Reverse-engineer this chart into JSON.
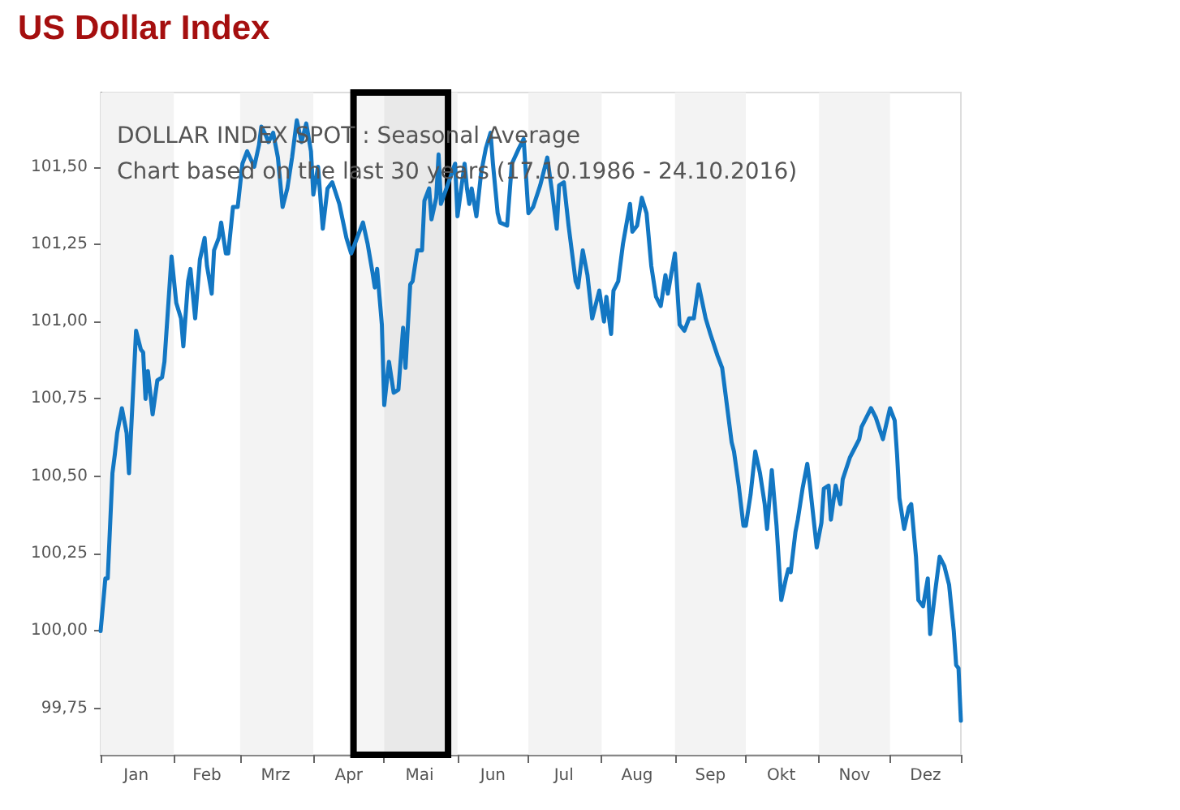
{
  "chart_data": {
    "type": "line",
    "title": "US Dollar Index",
    "annotations": [
      "DOLLAR INDEX SPOT : Seasonal Average",
      "Chart based on the last 30 years (17.10.1986 - 24.10.2016)"
    ],
    "xlim": [
      "--01-01",
      "--12-31"
    ],
    "xticks": [
      {
        "value": "--01-01",
        "label": null
      },
      {
        "value": "--01-16",
        "label": "Jan"
      },
      {
        "value": "--02-01",
        "label": null
      },
      {
        "value": "--02-15",
        "label": "Feb"
      },
      {
        "value": "--03-01",
        "label": null
      },
      {
        "value": "--03-16",
        "label": "Mrz"
      },
      {
        "value": "--04-01",
        "label": null
      },
      {
        "value": "--04-16",
        "label": "Apr"
      },
      {
        "value": "--05-01",
        "label": null
      },
      {
        "value": "--05-16",
        "label": "Mai"
      },
      {
        "value": "--06-01",
        "label": null
      },
      {
        "value": "--06-16",
        "label": "Jun"
      },
      {
        "value": "--07-01",
        "label": null
      },
      {
        "value": "--07-16",
        "label": "Jul"
      },
      {
        "value": "--08-01",
        "label": null
      },
      {
        "value": "--08-16",
        "label": "Aug"
      },
      {
        "value": "--09-01",
        "label": null
      },
      {
        "value": "--09-16",
        "label": "Sep"
      },
      {
        "value": "--10-01",
        "label": null
      },
      {
        "value": "--10-16",
        "label": "Okt"
      },
      {
        "value": "--11-01",
        "label": null
      },
      {
        "value": "--11-16",
        "label": "Nov"
      },
      {
        "value": "--12-01",
        "label": null
      },
      {
        "value": "--12-16",
        "label": "Dez"
      },
      {
        "value": "--12-31",
        "label": null
      }
    ],
    "ylim": [
      99.6,
      101.74
    ],
    "yticks": [
      {
        "value": 99.75,
        "label": "99,75"
      },
      {
        "value": 100,
        "label": "100,00"
      },
      {
        "value": 100.25,
        "label": "100,25"
      },
      {
        "value": 100.5,
        "label": "100,50"
      },
      {
        "value": 100.75,
        "label": "100,75"
      },
      {
        "value": 101,
        "label": "101,00"
      },
      {
        "value": 101.25,
        "label": "101,25"
      },
      {
        "value": 101.5,
        "label": "101,50"
      }
    ],
    "grid": false,
    "marker": "none",
    "line_style": "solid",
    "bands": [
      {
        "axis": "x",
        "from": "--01-01",
        "to": "--02-01",
        "color": "#f3f3f3"
      },
      {
        "axis": "x",
        "from": "--03-01",
        "to": "--04-01",
        "color": "#f3f3f3"
      },
      {
        "axis": "x",
        "from": "--05-01",
        "to": "--06-01",
        "color": "#f3f3f3"
      },
      {
        "axis": "x",
        "from": "--07-01",
        "to": "--08-01",
        "color": "#f3f3f3"
      },
      {
        "axis": "x",
        "from": "--09-01",
        "to": "--10-01",
        "color": "#f3f3f3"
      },
      {
        "axis": "x",
        "from": "--11-01",
        "to": "--12-01",
        "color": "#f3f3f3"
      },
      {
        "axis": "x",
        "from": "--04-18",
        "to": "--05-28",
        "color": "#000000"
      }
    ],
    "series": [
      {
        "color": "#1377c3",
        "x": [
          "--01-01",
          "--01-03",
          "--01-04",
          "--01-06",
          "--01-07",
          "--01-08",
          "--01-10",
          "--01-12",
          "--01-13",
          "--01-16",
          "--01-18",
          "--01-19",
          "--01-20",
          "--01-21",
          "--01-23",
          "--01-25",
          "--01-27",
          "--01-28",
          "--01-31",
          "--02-02",
          "--02-04",
          "--02-05",
          "--02-07",
          "--02-08",
          "--02-10",
          "--02-12",
          "--02-14",
          "--02-15",
          "--02-17",
          "--02-18",
          "--02-20",
          "--02-21",
          "--02-23",
          "--02-24",
          "--02-26",
          "--02-28",
          "--03-02",
          "--03-04",
          "--03-07",
          "--03-09",
          "--03-10",
          "--03-12",
          "--03-13",
          "--03-15",
          "--03-17",
          "--03-19",
          "--03-21",
          "--03-23",
          "--03-25",
          "--03-27",
          "--03-29",
          "--03-31",
          "--04-01",
          "--04-03",
          "--04-05",
          "--04-07",
          "--04-09",
          "--04-12",
          "--04-15",
          "--04-17",
          "--04-22",
          "--04-24",
          "--04-26",
          "--04-27",
          "--04-28",
          "--04-30",
          "--05-01",
          "--05-03",
          "--05-05",
          "--05-07",
          "--05-09",
          "--05-10",
          "--05-12",
          "--05-13",
          "--05-15",
          "--05-17",
          "--05-18",
          "--05-20",
          "--05-21",
          "--05-23",
          "--05-24",
          "--05-25",
          "--05-31",
          "--06-01",
          "--06-04",
          "--06-05",
          "--06-06",
          "--06-07",
          "--06-09",
          "--06-11",
          "--06-13",
          "--06-15",
          "--06-16",
          "--06-18",
          "--06-19",
          "--06-22",
          "--06-24",
          "--06-27",
          "--06-29",
          "--07-01",
          "--07-03",
          "--07-06",
          "--07-09",
          "--07-11",
          "--07-13",
          "--07-14",
          "--07-16",
          "--07-18",
          "--07-21",
          "--07-22",
          "--07-24",
          "--07-26",
          "--07-28",
          "--07-31",
          "--08-02",
          "--08-03",
          "--08-05",
          "--08-06",
          "--08-08",
          "--08-10",
          "--08-13",
          "--08-14",
          "--08-16",
          "--08-18",
          "--08-20",
          "--08-22",
          "--08-24",
          "--08-26",
          "--08-28",
          "--08-29",
          "--09-01",
          "--09-03",
          "--09-05",
          "--09-07",
          "--09-09",
          "--09-11",
          "--09-14",
          "--09-16",
          "--09-19",
          "--09-21",
          "--09-23",
          "--09-25",
          "--09-26",
          "--09-28",
          "--09-30",
          "--10-01",
          "--10-03",
          "--10-05",
          "--10-07",
          "--10-09",
          "--10-10",
          "--10-12",
          "--10-14",
          "--10-16",
          "--10-18",
          "--10-19",
          "--10-20",
          "--10-22",
          "--10-23",
          "--10-25",
          "--10-27",
          "--10-28",
          "--10-31",
          "--11-02",
          "--11-03",
          "--11-05",
          "--11-06",
          "--11-08",
          "--11-10",
          "--11-11",
          "--11-14",
          "--11-16",
          "--11-18",
          "--11-19",
          "--11-23",
          "--11-25",
          "--11-28",
          "--12-01",
          "--12-03",
          "--12-04",
          "--12-05",
          "--12-07",
          "--12-09",
          "--12-10",
          "--12-12",
          "--12-13",
          "--12-15",
          "--12-17",
          "--12-18",
          "--12-20",
          "--12-22",
          "--12-24",
          "--12-26",
          "--12-28",
          "--12-29",
          "--12-30",
          "--12-31"
        ],
        "values": [
          100.0,
          100.17,
          100.17,
          100.51,
          100.57,
          100.64,
          100.72,
          100.64,
          100.51,
          100.97,
          100.91,
          100.9,
          100.75,
          100.84,
          100.7,
          100.81,
          100.82,
          100.87,
          101.21,
          101.06,
          101.01,
          100.92,
          101.13,
          101.17,
          101.01,
          101.2,
          101.27,
          101.18,
          101.09,
          101.23,
          101.27,
          101.32,
          101.22,
          101.22,
          101.37,
          101.37,
          101.51,
          101.55,
          101.5,
          101.57,
          101.63,
          101.6,
          101.58,
          101.61,
          101.53,
          101.37,
          101.43,
          101.53,
          101.65,
          101.58,
          101.64,
          101.55,
          101.41,
          101.5,
          101.3,
          101.43,
          101.45,
          101.38,
          101.27,
          101.22,
          101.32,
          101.25,
          101.16,
          101.11,
          101.17,
          100.99,
          100.73,
          100.87,
          100.77,
          100.78,
          100.98,
          100.85,
          101.12,
          101.13,
          101.23,
          101.23,
          101.39,
          101.43,
          101.33,
          101.4,
          101.54,
          101.38,
          101.51,
          101.34,
          101.51,
          101.43,
          101.38,
          101.43,
          101.34,
          101.48,
          101.56,
          101.61,
          101.51,
          101.35,
          101.32,
          101.31,
          101.51,
          101.56,
          101.59,
          101.35,
          101.37,
          101.44,
          101.53,
          101.42,
          101.3,
          101.44,
          101.45,
          101.31,
          101.13,
          101.11,
          101.23,
          101.15,
          101.01,
          101.1,
          101.0,
          101.08,
          100.96,
          101.1,
          101.13,
          101.25,
          101.38,
          101.29,
          101.31,
          101.4,
          101.35,
          101.18,
          101.08,
          101.05,
          101.15,
          101.09,
          101.22,
          100.99,
          100.97,
          101.01,
          101.01,
          101.12,
          101.01,
          100.96,
          100.89,
          100.85,
          100.73,
          100.61,
          100.58,
          100.47,
          100.34,
          100.34,
          100.44,
          100.58,
          100.51,
          100.41,
          100.33,
          100.52,
          100.34,
          100.1,
          100.17,
          100.2,
          100.19,
          100.32,
          100.36,
          100.46,
          100.54,
          100.48,
          100.27,
          100.35,
          100.46,
          100.47,
          100.36,
          100.47,
          100.41,
          100.49,
          100.56,
          100.59,
          100.62,
          100.66,
          100.72,
          100.69,
          100.62,
          100.72,
          100.68,
          100.57,
          100.43,
          100.33,
          100.4,
          100.41,
          100.24,
          100.1,
          100.08,
          100.17,
          99.99,
          100.12,
          100.24,
          100.21,
          100.15,
          100.0,
          99.89,
          99.88,
          99.71
        ]
      }
    ]
  }
}
